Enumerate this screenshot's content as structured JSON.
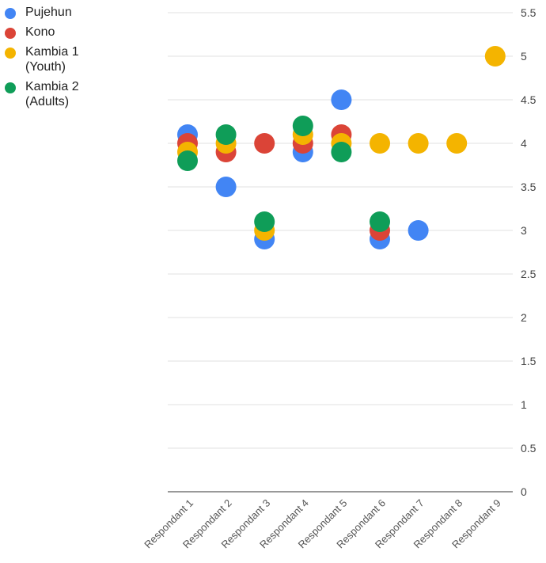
{
  "chart_data": {
    "type": "scatter",
    "categories": [
      "Respondant 1",
      "Respondant 2",
      "Respondant 3",
      "Respondant 4",
      "Respondant 5",
      "Respondant 6",
      "Respondant 7",
      "Respondant 8",
      "Respondant 9"
    ],
    "ylim": [
      0,
      5.5
    ],
    "yticks": [
      "0",
      "0.5",
      "1",
      "1.5",
      "2",
      "2.5",
      "3",
      "3.5",
      "4",
      "4.5",
      "5",
      "5.5"
    ],
    "grid": true,
    "legend_position": "top-left",
    "series": [
      {
        "name": "Pujehun",
        "color": "#4285F4",
        "values": [
          4.1,
          3.5,
          2.9,
          3.9,
          4.5,
          2.9,
          3.0,
          null,
          null
        ]
      },
      {
        "name": "Kono",
        "color": "#DB4437",
        "values": [
          4.0,
          3.9,
          4.0,
          4.0,
          4.1,
          3.0,
          null,
          null,
          null
        ]
      },
      {
        "name": "Kambia 1\n(Youth)",
        "color": "#F4B400",
        "values": [
          3.9,
          4.0,
          3.0,
          4.1,
          4.0,
          4.0,
          4.0,
          4.0,
          5.0
        ]
      },
      {
        "name": "Kambia 2\n(Adults)",
        "color": "#0F9D58",
        "values": [
          3.8,
          4.1,
          3.1,
          4.2,
          3.9,
          3.1,
          null,
          null,
          null
        ]
      }
    ]
  }
}
